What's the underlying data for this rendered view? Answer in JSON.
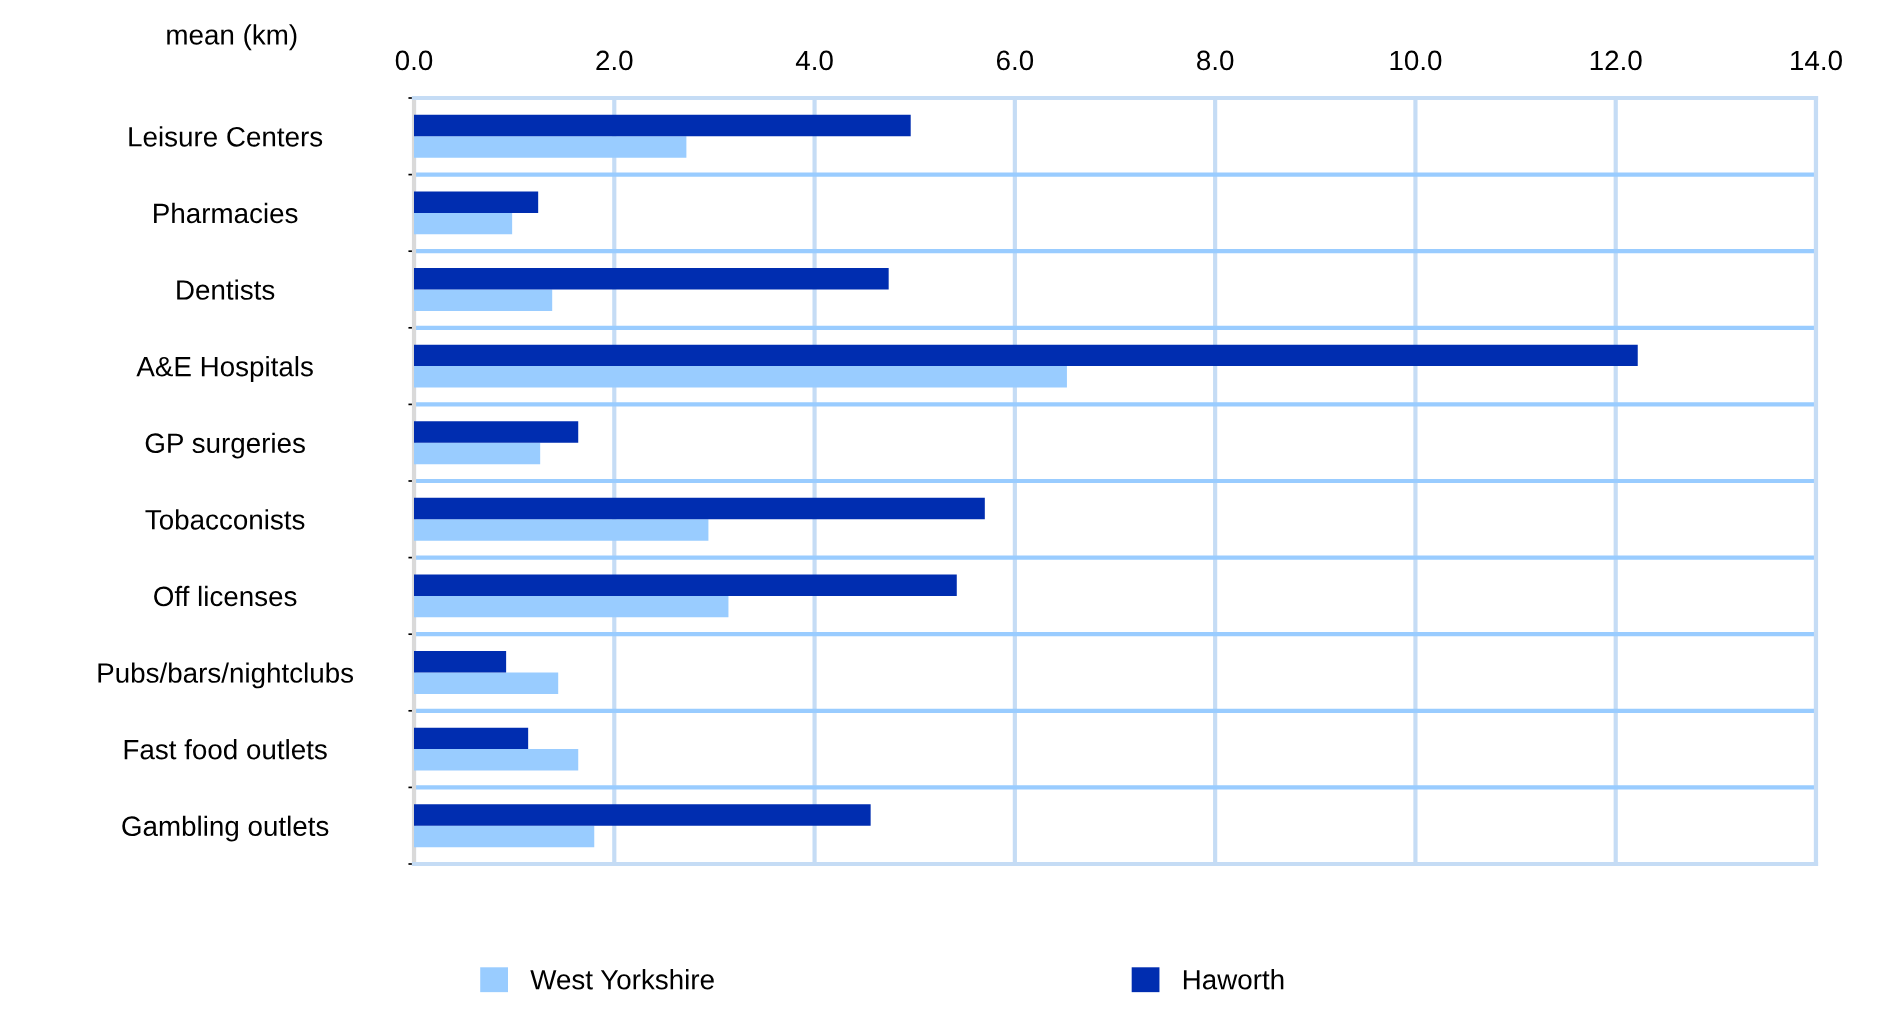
{
  "chart_data": {
    "type": "bar",
    "orientation": "horizontal",
    "xlabel": "mean (km)",
    "categories": [
      "Leisure Centers",
      "Pharmacies",
      "Dentists",
      "A&E Hospitals",
      "GP surgeries",
      "Tobacconists",
      "Off licenses",
      "Pubs/bars/nightclubs",
      "Fast food outlets",
      "Gambling outlets"
    ],
    "series": [
      {
        "name": "West Yorkshire",
        "color": "#99ccff",
        "values": [
          2.72,
          0.98,
          1.38,
          6.52,
          1.26,
          2.94,
          3.14,
          1.44,
          1.64,
          1.8
        ]
      },
      {
        "name": "Haworth",
        "color": "#002db0",
        "values": [
          4.96,
          1.24,
          4.74,
          12.22,
          1.64,
          5.7,
          5.42,
          0.92,
          1.14,
          4.56
        ]
      }
    ],
    "xlim": [
      0,
      14
    ],
    "xticks": [
      {
        "value": 0,
        "label": "0.0"
      },
      {
        "value": 2,
        "label": "2.0"
      },
      {
        "value": 4,
        "label": "4.0"
      },
      {
        "value": 6,
        "label": "6.0"
      },
      {
        "value": 8,
        "label": "8.0"
      },
      {
        "value": 10,
        "label": "10.0"
      },
      {
        "value": 12,
        "label": "12.0"
      },
      {
        "value": 14,
        "label": "14.0"
      }
    ],
    "grid": true,
    "legend": "bottom"
  }
}
